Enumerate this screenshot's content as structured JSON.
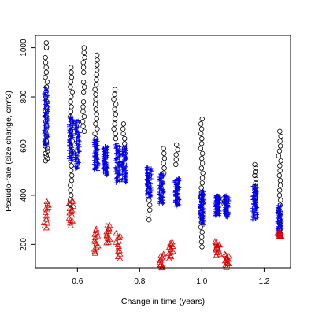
{
  "chart_data": {
    "type": "scatter",
    "title": "",
    "xlabel": "Change in time (years)",
    "ylabel": "Pseudo-rate (size change, cm^3)",
    "xlim": [
      0.465,
      1.285
    ],
    "ylim": [
      105,
      1050
    ],
    "xticks": [
      0.6,
      0.8,
      1.0,
      1.2
    ],
    "xtick_labels": [
      "0.6",
      "0.8",
      "1.0",
      "1.2"
    ],
    "yticks": [
      200,
      400,
      600,
      800,
      1000
    ],
    "ytick_labels": [
      "200",
      "400",
      "600",
      "800",
      "1000"
    ],
    "grid": false,
    "legend": "none",
    "series": [
      {
        "marker": "circle-open",
        "color": "#000000",
        "clusters": [
          {
            "x": 0.5,
            "values": [
              1020,
              1000,
              960,
              940,
              920,
              900,
              880,
              860,
              840,
              820,
              800,
              780,
              760,
              740,
              720,
              700,
              680,
              660,
              640,
              620,
              610,
              600,
              590,
              580,
              570,
              560,
              550,
              540
            ]
          },
          {
            "x": 0.58,
            "values": [
              920,
              900,
              880,
              860,
              840,
              820,
              800,
              780,
              760,
              740,
              720,
              700,
              680,
              660,
              640,
              620,
              600,
              580,
              560,
              540,
              520,
              500,
              480,
              460,
              440,
              420,
              400,
              380,
              360,
              345
            ]
          },
          {
            "x": 0.62,
            "values": [
              1000,
              980,
              960,
              940,
              920,
              900,
              860,
              840,
              820,
              780,
              760,
              740,
              720,
              700,
              680,
              660
            ]
          },
          {
            "x": 0.66,
            "values": [
              970,
              950,
              930,
              910,
              890,
              870,
              850,
              830,
              810,
              790,
              770,
              750,
              730,
              710,
              690,
              670,
              650,
              630
            ]
          },
          {
            "x": 0.72,
            "values": [
              830,
              810,
              790,
              770,
              750,
              730,
              710,
              690,
              670,
              650,
              630
            ]
          },
          {
            "x": 0.75,
            "values": [
              690,
              670,
              650,
              630,
              610,
              590,
              570
            ]
          },
          {
            "x": 0.83,
            "values": [
              500,
              480,
              460,
              440,
              420,
              400,
              380,
              360,
              340,
              320,
              300
            ]
          },
          {
            "x": 0.88,
            "values": [
              590,
              570,
              550,
              530,
              510,
              490
            ]
          },
          {
            "x": 0.92,
            "values": [
              605,
              585,
              565,
              545,
              525
            ]
          },
          {
            "x": 1.0,
            "values": [
              710,
              690,
              670,
              650,
              630,
              610,
              590,
              570,
              550,
              530,
              510,
              490,
              470,
              450,
              430,
              410,
              390,
              370,
              350,
              330,
              310,
              290,
              270,
              250,
              230,
              210,
              190
            ]
          },
          {
            "x": 1.05,
            "values": [
              395,
              385,
              375
            ]
          },
          {
            "x": 1.07,
            "values": [
              385,
              375,
              365
            ]
          },
          {
            "x": 1.17,
            "values": [
              525,
              510,
              495,
              480,
              465,
              450,
              435,
              420,
              405,
              390,
              375
            ]
          },
          {
            "x": 1.25,
            "values": [
              660,
              640,
              620,
              600,
              580,
              560,
              540,
              520,
              500,
              480,
              460,
              440,
              420,
              400,
              380,
              360,
              340,
              320,
              300,
              280,
              260
            ]
          }
        ]
      },
      {
        "marker": "plus",
        "color": "#0000ee",
        "clusters": [
          {
            "x": 0.5,
            "range": [
              600,
              840
            ]
          },
          {
            "x": 0.58,
            "range": [
              540,
              720
            ]
          },
          {
            "x": 0.6,
            "range": [
              505,
              705
            ]
          },
          {
            "x": 0.66,
            "range": [
              500,
              630
            ]
          },
          {
            "x": 0.69,
            "range": [
              480,
              600
            ]
          },
          {
            "x": 0.73,
            "range": [
              450,
              610
            ]
          },
          {
            "x": 0.75,
            "range": [
              450,
              600
            ]
          },
          {
            "x": 0.83,
            "range": [
              390,
              515
            ]
          },
          {
            "x": 0.87,
            "range": [
              365,
              490
            ]
          },
          {
            "x": 0.92,
            "range": [
              355,
              470
            ]
          },
          {
            "x": 1.0,
            "range": [
              280,
              420
            ]
          },
          {
            "x": 1.05,
            "range": [
              315,
              400
            ]
          },
          {
            "x": 1.08,
            "range": [
              310,
              400
            ]
          },
          {
            "x": 1.17,
            "range": [
              300,
              440
            ]
          },
          {
            "x": 1.25,
            "range": [
              235,
              360
            ]
          }
        ]
      },
      {
        "marker": "triangle-open",
        "color": "#dd0000",
        "clusters": [
          {
            "x": 0.5,
            "range": [
              260,
              380
            ]
          },
          {
            "x": 0.58,
            "range": [
              270,
              385
            ]
          },
          {
            "x": 0.66,
            "range": [
              160,
              265
            ]
          },
          {
            "x": 0.7,
            "range": [
              200,
              280
            ]
          },
          {
            "x": 0.73,
            "range": [
              140,
              250
            ]
          },
          {
            "x": 0.87,
            "range": [
              100,
              160
            ]
          },
          {
            "x": 0.9,
            "range": [
              140,
              210
            ]
          },
          {
            "x": 1.05,
            "range": [
              155,
              215
            ]
          },
          {
            "x": 1.08,
            "range": [
              105,
              160
            ]
          },
          {
            "x": 1.25,
            "range": [
              230,
              250
            ]
          }
        ]
      }
    ]
  }
}
